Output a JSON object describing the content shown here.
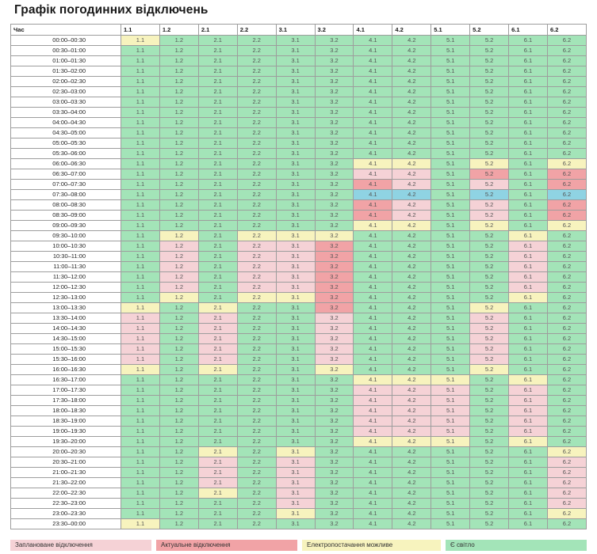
{
  "title": "Графік погодинних відключень",
  "header": {
    "time_label": "Час",
    "groups": [
      "1.1",
      "1.2",
      "2.1",
      "2.2",
      "3.1",
      "3.2",
      "4.1",
      "4.2",
      "5.1",
      "5.2",
      "6.1",
      "6.2"
    ]
  },
  "status_colors": {
    "on": "#a3e4b8",
    "maybe": "#f7f3be",
    "planned": "#f5d2d6",
    "actual": "#f1a3a6",
    "unknown": "#8fd3e3"
  },
  "legend": [
    {
      "key": "planned",
      "label": "Заплановане відключення"
    },
    {
      "key": "actual",
      "label": "Актуальне відключення"
    },
    {
      "key": "maybe",
      "label": "Електропостачання можливе"
    },
    {
      "key": "on",
      "label": "Є світло"
    }
  ],
  "rows": [
    {
      "time": "00:00–00:30",
      "status": [
        "maybe",
        "on",
        "on",
        "on",
        "on",
        "on",
        "on",
        "on",
        "on",
        "on",
        "on",
        "on"
      ]
    },
    {
      "time": "00:30–01:00",
      "status": [
        "on",
        "on",
        "on",
        "on",
        "on",
        "on",
        "on",
        "on",
        "on",
        "on",
        "on",
        "on"
      ]
    },
    {
      "time": "01:00–01:30",
      "status": [
        "on",
        "on",
        "on",
        "on",
        "on",
        "on",
        "on",
        "on",
        "on",
        "on",
        "on",
        "on"
      ]
    },
    {
      "time": "01:30–02:00",
      "status": [
        "on",
        "on",
        "on",
        "on",
        "on",
        "on",
        "on",
        "on",
        "on",
        "on",
        "on",
        "on"
      ]
    },
    {
      "time": "02:00–02:30",
      "status": [
        "on",
        "on",
        "on",
        "on",
        "on",
        "on",
        "on",
        "on",
        "on",
        "on",
        "on",
        "on"
      ]
    },
    {
      "time": "02:30–03:00",
      "status": [
        "on",
        "on",
        "on",
        "on",
        "on",
        "on",
        "on",
        "on",
        "on",
        "on",
        "on",
        "on"
      ]
    },
    {
      "time": "03:00–03:30",
      "status": [
        "on",
        "on",
        "on",
        "on",
        "on",
        "on",
        "on",
        "on",
        "on",
        "on",
        "on",
        "on"
      ]
    },
    {
      "time": "03:30–04:00",
      "status": [
        "on",
        "on",
        "on",
        "on",
        "on",
        "on",
        "on",
        "on",
        "on",
        "on",
        "on",
        "on"
      ]
    },
    {
      "time": "04:00–04:30",
      "status": [
        "on",
        "on",
        "on",
        "on",
        "on",
        "on",
        "on",
        "on",
        "on",
        "on",
        "on",
        "on"
      ]
    },
    {
      "time": "04:30–05:00",
      "status": [
        "on",
        "on",
        "on",
        "on",
        "on",
        "on",
        "on",
        "on",
        "on",
        "on",
        "on",
        "on"
      ]
    },
    {
      "time": "05:00–05:30",
      "status": [
        "on",
        "on",
        "on",
        "on",
        "on",
        "on",
        "on",
        "on",
        "on",
        "on",
        "on",
        "on"
      ]
    },
    {
      "time": "05:30–06:00",
      "status": [
        "on",
        "on",
        "on",
        "on",
        "on",
        "on",
        "on",
        "on",
        "on",
        "on",
        "on",
        "on"
      ]
    },
    {
      "time": "06:00–06:30",
      "status": [
        "on",
        "on",
        "on",
        "on",
        "on",
        "on",
        "maybe",
        "maybe",
        "on",
        "maybe",
        "on",
        "maybe"
      ]
    },
    {
      "time": "06:30–07:00",
      "status": [
        "on",
        "on",
        "on",
        "on",
        "on",
        "on",
        "planned",
        "planned",
        "on",
        "actual",
        "on",
        "actual"
      ]
    },
    {
      "time": "07:00–07:30",
      "status": [
        "on",
        "on",
        "on",
        "on",
        "on",
        "on",
        "actual",
        "planned",
        "on",
        "planned",
        "on",
        "actual"
      ]
    },
    {
      "time": "07:30–08:00",
      "status": [
        "on",
        "on",
        "on",
        "on",
        "on",
        "on",
        "unknown",
        "unknown",
        "on",
        "unknown",
        "on",
        "unknown"
      ]
    },
    {
      "time": "08:00–08:30",
      "status": [
        "on",
        "on",
        "on",
        "on",
        "on",
        "on",
        "actual",
        "planned",
        "on",
        "planned",
        "on",
        "actual"
      ]
    },
    {
      "time": "08:30–09:00",
      "status": [
        "on",
        "on",
        "on",
        "on",
        "on",
        "on",
        "actual",
        "planned",
        "on",
        "planned",
        "on",
        "actual"
      ]
    },
    {
      "time": "09:00–09:30",
      "status": [
        "on",
        "on",
        "on",
        "on",
        "on",
        "on",
        "maybe",
        "maybe",
        "on",
        "maybe",
        "on",
        "maybe"
      ]
    },
    {
      "time": "09:30–10:00",
      "status": [
        "on",
        "maybe",
        "on",
        "maybe",
        "maybe",
        "maybe",
        "on",
        "on",
        "on",
        "on",
        "maybe",
        "on"
      ]
    },
    {
      "time": "10:00–10:30",
      "status": [
        "on",
        "planned",
        "on",
        "planned",
        "planned",
        "actual",
        "on",
        "on",
        "on",
        "on",
        "planned",
        "on"
      ]
    },
    {
      "time": "10:30–11:00",
      "status": [
        "on",
        "planned",
        "on",
        "planned",
        "planned",
        "actual",
        "on",
        "on",
        "on",
        "on",
        "planned",
        "on"
      ]
    },
    {
      "time": "11:00–11:30",
      "status": [
        "on",
        "planned",
        "on",
        "planned",
        "planned",
        "actual",
        "on",
        "on",
        "on",
        "on",
        "planned",
        "on"
      ]
    },
    {
      "time": "11:30–12:00",
      "status": [
        "on",
        "planned",
        "on",
        "planned",
        "planned",
        "actual",
        "on",
        "on",
        "on",
        "on",
        "planned",
        "on"
      ]
    },
    {
      "time": "12:00–12:30",
      "status": [
        "on",
        "planned",
        "on",
        "planned",
        "planned",
        "actual",
        "on",
        "on",
        "on",
        "on",
        "planned",
        "on"
      ]
    },
    {
      "time": "12:30–13:00",
      "status": [
        "on",
        "maybe",
        "on",
        "maybe",
        "maybe",
        "actual",
        "on",
        "on",
        "on",
        "on",
        "maybe",
        "on"
      ]
    },
    {
      "time": "13:00–13:30",
      "status": [
        "maybe",
        "on",
        "maybe",
        "on",
        "on",
        "actual",
        "on",
        "on",
        "on",
        "maybe",
        "on",
        "on"
      ]
    },
    {
      "time": "13:30–14:00",
      "status": [
        "planned",
        "on",
        "planned",
        "on",
        "on",
        "planned",
        "on",
        "on",
        "on",
        "planned",
        "on",
        "on"
      ]
    },
    {
      "time": "14:00–14:30",
      "status": [
        "planned",
        "on",
        "planned",
        "on",
        "on",
        "planned",
        "on",
        "on",
        "on",
        "planned",
        "on",
        "on"
      ]
    },
    {
      "time": "14:30–15:00",
      "status": [
        "planned",
        "on",
        "planned",
        "on",
        "on",
        "planned",
        "on",
        "on",
        "on",
        "planned",
        "on",
        "on"
      ]
    },
    {
      "time": "15:00–15:30",
      "status": [
        "planned",
        "on",
        "planned",
        "on",
        "on",
        "planned",
        "on",
        "on",
        "on",
        "planned",
        "on",
        "on"
      ]
    },
    {
      "time": "15:30–16:00",
      "status": [
        "planned",
        "on",
        "planned",
        "on",
        "on",
        "planned",
        "on",
        "on",
        "on",
        "planned",
        "on",
        "on"
      ]
    },
    {
      "time": "16:00–16:30",
      "status": [
        "maybe",
        "on",
        "maybe",
        "on",
        "on",
        "maybe",
        "on",
        "on",
        "on",
        "maybe",
        "on",
        "on"
      ]
    },
    {
      "time": "16:30–17:00",
      "status": [
        "on",
        "on",
        "on",
        "on",
        "on",
        "on",
        "maybe",
        "maybe",
        "maybe",
        "on",
        "maybe",
        "on"
      ]
    },
    {
      "time": "17:00–17:30",
      "status": [
        "on",
        "on",
        "on",
        "on",
        "on",
        "on",
        "planned",
        "planned",
        "planned",
        "on",
        "planned",
        "on"
      ]
    },
    {
      "time": "17:30–18:00",
      "status": [
        "on",
        "on",
        "on",
        "on",
        "on",
        "on",
        "planned",
        "planned",
        "planned",
        "on",
        "planned",
        "on"
      ]
    },
    {
      "time": "18:00–18:30",
      "status": [
        "on",
        "on",
        "on",
        "on",
        "on",
        "on",
        "planned",
        "planned",
        "planned",
        "on",
        "planned",
        "on"
      ]
    },
    {
      "time": "18:30–19:00",
      "status": [
        "on",
        "on",
        "on",
        "on",
        "on",
        "on",
        "planned",
        "planned",
        "planned",
        "on",
        "planned",
        "on"
      ]
    },
    {
      "time": "19:00–19:30",
      "status": [
        "on",
        "on",
        "on",
        "on",
        "on",
        "on",
        "planned",
        "planned",
        "planned",
        "on",
        "planned",
        "on"
      ]
    },
    {
      "time": "19:30–20:00",
      "status": [
        "on",
        "on",
        "on",
        "on",
        "on",
        "on",
        "maybe",
        "maybe",
        "maybe",
        "on",
        "maybe",
        "on"
      ]
    },
    {
      "time": "20:00–20:30",
      "status": [
        "on",
        "on",
        "maybe",
        "on",
        "maybe",
        "on",
        "on",
        "on",
        "on",
        "on",
        "on",
        "maybe"
      ]
    },
    {
      "time": "20:30–21:00",
      "status": [
        "on",
        "on",
        "planned",
        "on",
        "planned",
        "on",
        "on",
        "on",
        "on",
        "on",
        "on",
        "planned"
      ]
    },
    {
      "time": "21:00–21:30",
      "status": [
        "on",
        "on",
        "planned",
        "on",
        "planned",
        "on",
        "on",
        "on",
        "on",
        "on",
        "on",
        "planned"
      ]
    },
    {
      "time": "21:30–22:00",
      "status": [
        "on",
        "on",
        "planned",
        "on",
        "planned",
        "on",
        "on",
        "on",
        "on",
        "on",
        "on",
        "planned"
      ]
    },
    {
      "time": "22:00–22:30",
      "status": [
        "on",
        "on",
        "maybe",
        "on",
        "planned",
        "on",
        "on",
        "on",
        "on",
        "on",
        "on",
        "planned"
      ]
    },
    {
      "time": "22:30–23:00",
      "status": [
        "on",
        "on",
        "on",
        "on",
        "planned",
        "on",
        "on",
        "on",
        "on",
        "on",
        "on",
        "planned"
      ]
    },
    {
      "time": "23:00–23:30",
      "status": [
        "on",
        "on",
        "on",
        "on",
        "maybe",
        "on",
        "on",
        "on",
        "on",
        "on",
        "on",
        "maybe"
      ]
    },
    {
      "time": "23:30–00:00",
      "status": [
        "maybe",
        "on",
        "on",
        "on",
        "on",
        "on",
        "on",
        "on",
        "on",
        "on",
        "on",
        "on"
      ]
    }
  ]
}
